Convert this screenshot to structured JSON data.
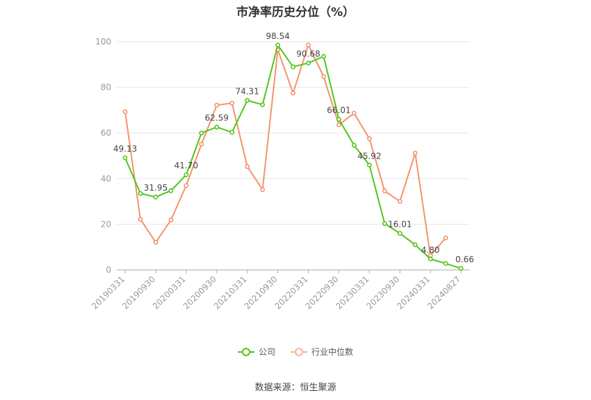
{
  "chart_data": {
    "type": "line",
    "title": "市净率历史分位（%）",
    "ylim": [
      0,
      100
    ],
    "yticks": [
      0,
      20,
      40,
      60,
      80,
      100
    ],
    "x": [
      "20190331",
      "20190630",
      "20190930",
      "20191231",
      "20200331",
      "20200630",
      "20200930",
      "20201231",
      "20210331",
      "20210630",
      "20210930",
      "20211231",
      "20220331",
      "20220630",
      "20220930",
      "20221231",
      "20230331",
      "20230630",
      "20230930",
      "20231231",
      "20240331",
      "20240630",
      "20240827"
    ],
    "xtick_labels": [
      "20190331",
      "20190930",
      "20200331",
      "20200930",
      "20210331",
      "20210930",
      "20220331",
      "20220930",
      "20230331",
      "20230930",
      "20240331",
      "20240827"
    ],
    "grid": true,
    "legend_position": "bottom",
    "series": [
      {
        "name": "公司",
        "color": "#52c41a",
        "values": [
          49.13,
          33.5,
          31.95,
          34.7,
          41.7,
          60.0,
          62.59,
          60.3,
          74.31,
          72.4,
          98.54,
          89.0,
          90.68,
          93.6,
          66.01,
          54.6,
          45.92,
          20.3,
          16.01,
          11.0,
          4.8,
          2.8,
          0.66
        ],
        "labels": {
          "0": "49.13",
          "2": "31.95",
          "4": "41.70",
          "6": "62.59",
          "8": "74.31",
          "10": "98.54",
          "12": "90.68",
          "14": "66.01",
          "16": "45.92",
          "18": "16.01",
          "20": "4.80",
          "22": "0.66"
        }
      },
      {
        "name": "行业中位数",
        "color": "#f5926b",
        "values": [
          69.3,
          22.2,
          12.1,
          21.9,
          37.0,
          55.1,
          72.2,
          73.1,
          45.3,
          35.2,
          96.5,
          77.5,
          98.6,
          84.8,
          63.6,
          68.7,
          57.5,
          34.6,
          30.0,
          51.2,
          6.3,
          14.0,
          null
        ]
      }
    ]
  },
  "source": "数据来源：恒生聚源"
}
